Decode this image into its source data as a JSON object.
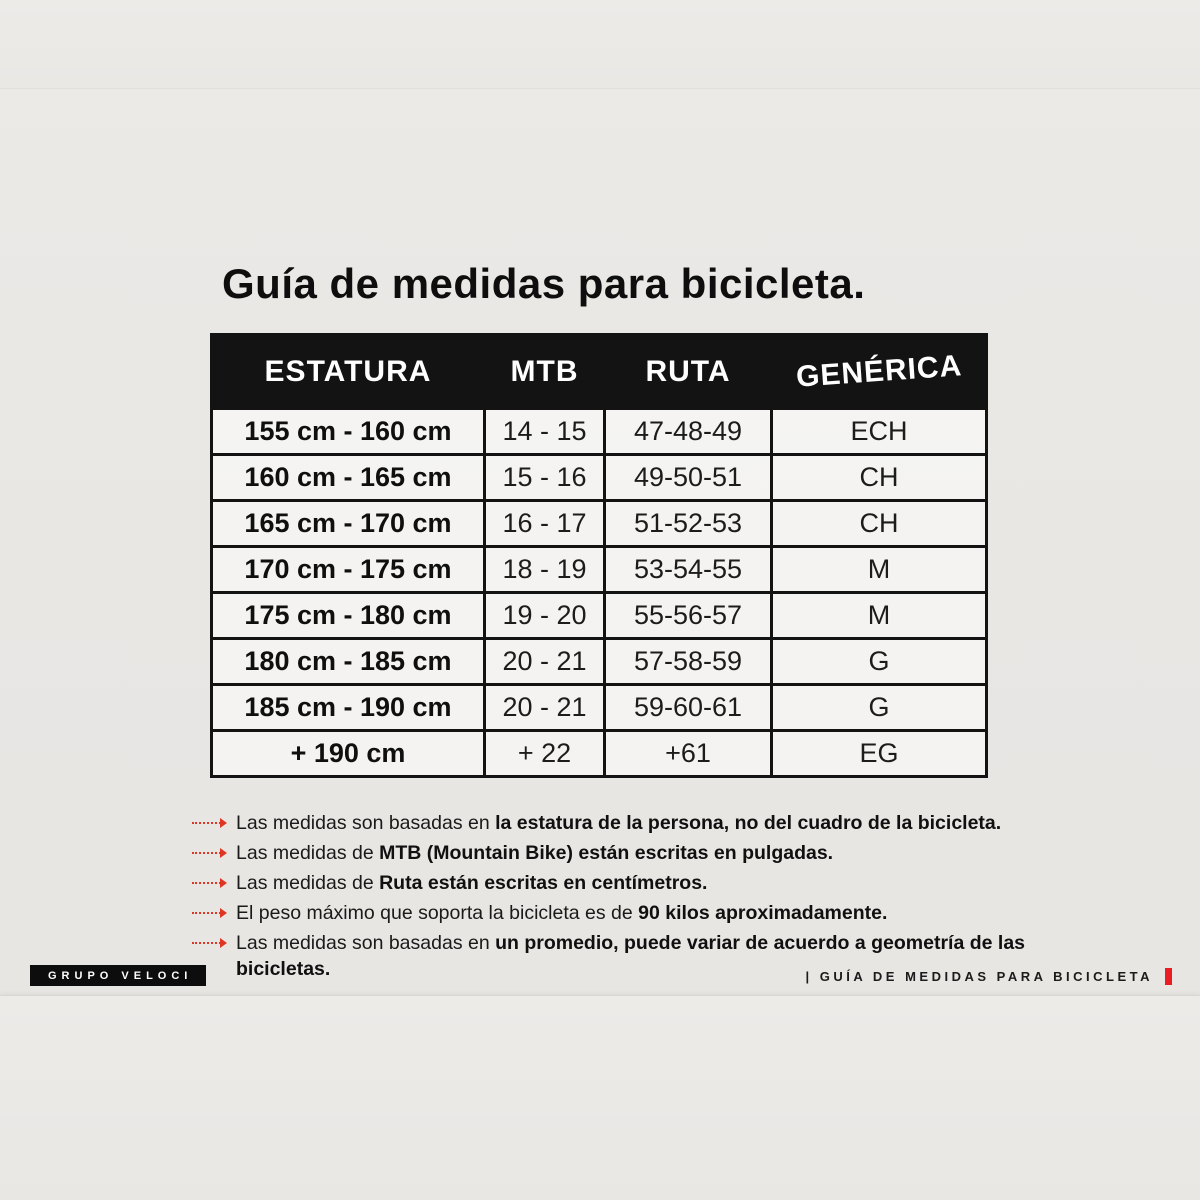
{
  "page": {
    "title": "Guía de medidas para bicicleta.",
    "background": "#e9e7e4",
    "ink": "#131313",
    "accent_red": "#df3522",
    "bar_red": "#ec1c24"
  },
  "table": {
    "headers": [
      "ESTATURA",
      "MTB",
      "RUTA",
      "GENÉRICA"
    ],
    "rows": [
      [
        "155 cm - 160 cm",
        "14 - 15",
        "47-48-49",
        "ECH"
      ],
      [
        "160 cm - 165 cm",
        "15 - 16",
        "49-50-51",
        "CH"
      ],
      [
        "165 cm - 170 cm",
        "16 - 17",
        "51-52-53",
        "CH"
      ],
      [
        "170 cm - 175 cm",
        "18 - 19",
        "53-54-55",
        "M"
      ],
      [
        "175 cm - 180 cm",
        "19 - 20",
        "55-56-57",
        "M"
      ],
      [
        "180 cm - 185 cm",
        "20 - 21",
        "57-58-59",
        "G"
      ],
      [
        "185 cm - 190 cm",
        "20 - 21",
        "59-60-61",
        "G"
      ],
      [
        "+ 190 cm",
        "+ 22",
        "+61",
        "EG"
      ]
    ]
  },
  "notes": [
    {
      "segments": [
        {
          "text": "Las medidas son basadas en ",
          "bold": false
        },
        {
          "text": "la estatura de la persona, no del cuadro de la bicicleta.",
          "bold": true
        }
      ]
    },
    {
      "segments": [
        {
          "text": "Las medidas de ",
          "bold": false
        },
        {
          "text": "MTB (Mountain Bike) están escritas en pulgadas.",
          "bold": true
        }
      ]
    },
    {
      "segments": [
        {
          "text": "Las medidas de ",
          "bold": false
        },
        {
          "text": "Ruta están escritas en centímetros.",
          "bold": true
        }
      ]
    },
    {
      "segments": [
        {
          "text": "El peso máximo que soporta la bicicleta es de ",
          "bold": false
        },
        {
          "text": "90 kilos aproximadamente.",
          "bold": true
        }
      ]
    },
    {
      "segments": [
        {
          "text": "Las medidas son basadas en ",
          "bold": false
        },
        {
          "text": "un promedio, puede variar de acuerdo a geometría de las bicicletas.",
          "bold": true
        }
      ]
    }
  ],
  "footer": {
    "brand": "GRUPO VELOCI",
    "caption": "|  GUÍA DE MEDIDAS PARA BICICLETA"
  }
}
